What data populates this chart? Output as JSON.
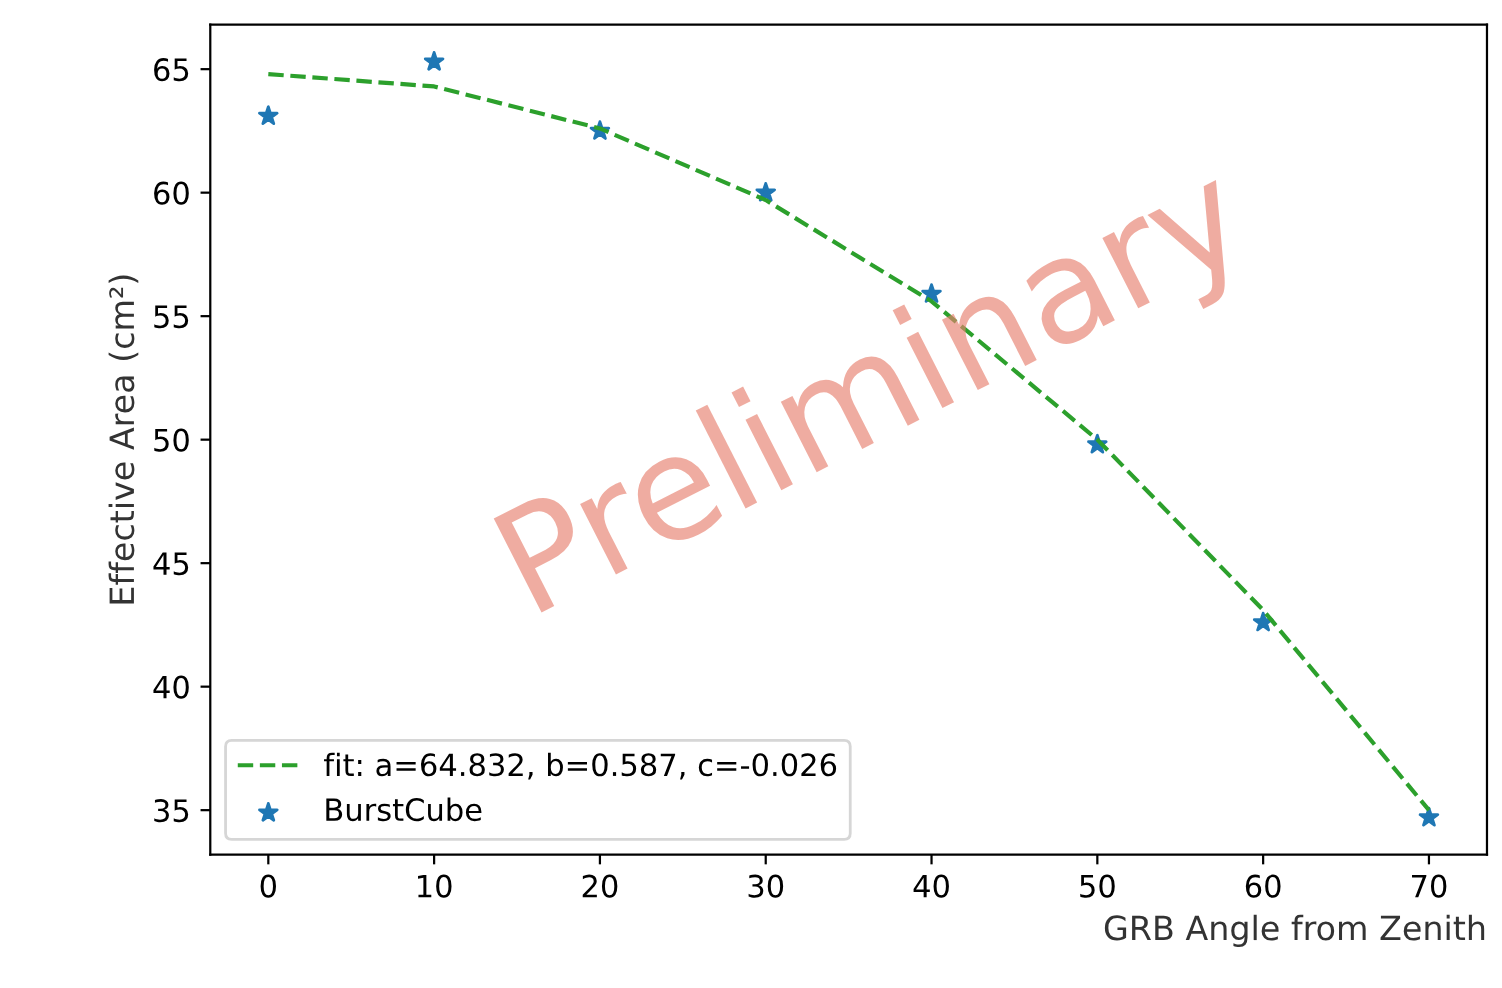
{
  "chart_data": {
    "type": "scatter",
    "xlabel": "GRB Angle from Zenith",
    "ylabel": "Effective Area (cm²)",
    "x": [
      0,
      10,
      20,
      30,
      40,
      50,
      60,
      70
    ],
    "series": [
      {
        "name": "fit: a=64.832, b=0.587, c=-0.026",
        "type": "line",
        "color": "#2ca02c",
        "line_style": "dashed",
        "marker": "none",
        "values": [
          64.8,
          64.3,
          62.6,
          59.7,
          55.6,
          50.0,
          43.1,
          35.0
        ]
      },
      {
        "name": "BurstCube",
        "color": "#1f77b4",
        "marker": "star",
        "values": [
          63.1,
          65.3,
          62.5,
          60.0,
          55.9,
          49.8,
          42.6,
          34.7
        ]
      }
    ],
    "xlim": [
      -3.5,
      73.5
    ],
    "xticks": [
      0,
      10,
      20,
      30,
      40,
      50,
      60,
      70
    ],
    "ylim": [
      33.2,
      66.8
    ],
    "yticks": [
      35,
      40,
      45,
      50,
      55,
      60,
      65
    ],
    "grid": false,
    "legend": "bottom left",
    "annotations": [
      "Preliminary"
    ]
  }
}
